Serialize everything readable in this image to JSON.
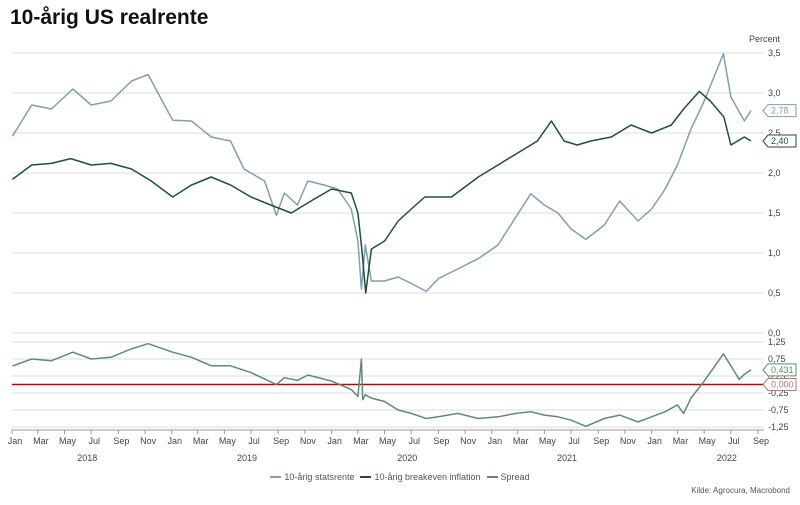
{
  "title": "10-årig US realrente",
  "source": "Kilde: Agrocura, Macrobond",
  "colors": {
    "statsrente": "#7f9fb5",
    "breakeven": "#1d5238",
    "spread": "#5d8c74",
    "zero_line": "#c00000",
    "grid": "#dcdcdc"
  },
  "chart_data": [
    {
      "type": "line",
      "unit_label": "Percent",
      "ylim": [
        0,
        3.5
      ],
      "y_ticks": [
        "0,0",
        "0,5",
        "1,0",
        "1,5",
        "2,0",
        "2,5",
        "3,0",
        "3,5"
      ],
      "grid": true,
      "series": [
        {
          "name": "10-årig statsrente",
          "x": [
            "2018-01-02",
            "2018-02-15",
            "2018-04-01",
            "2018-05-20",
            "2018-07-01",
            "2018-08-15",
            "2018-10-01",
            "2018-11-08",
            "2018-12-15",
            "2019-01-03",
            "2019-02-15",
            "2019-04-01",
            "2019-05-15",
            "2019-06-15",
            "2019-08-01",
            "2019-08-28",
            "2019-09-15",
            "2019-10-15",
            "2019-11-08",
            "2019-12-15",
            "2020-01-15",
            "2020-02-15",
            "2020-03-01",
            "2020-03-09",
            "2020-03-18",
            "2020-04-01",
            "2020-05-01",
            "2020-06-01",
            "2020-07-01",
            "2020-08-04",
            "2020-09-01",
            "2020-10-15",
            "2020-12-01",
            "2021-01-15",
            "2021-02-25",
            "2021-03-31",
            "2021-05-01",
            "2021-06-01",
            "2021-07-01",
            "2021-08-04",
            "2021-09-15",
            "2021-10-20",
            "2021-12-01",
            "2022-01-01",
            "2022-02-01",
            "2022-03-01",
            "2022-04-01",
            "2022-05-01",
            "2022-06-14",
            "2022-07-01",
            "2022-08-01",
            "2022-08-16"
          ],
          "y": [
            2.46,
            2.85,
            2.8,
            3.05,
            2.85,
            2.9,
            3.15,
            3.23,
            2.85,
            2.66,
            2.65,
            2.45,
            2.4,
            2.05,
            1.9,
            1.47,
            1.75,
            1.6,
            1.9,
            1.85,
            1.8,
            1.55,
            1.15,
            0.55,
            1.1,
            0.65,
            0.65,
            0.7,
            0.62,
            0.52,
            0.68,
            0.8,
            0.93,
            1.1,
            1.45,
            1.74,
            1.6,
            1.5,
            1.3,
            1.17,
            1.35,
            1.65,
            1.4,
            1.55,
            1.8,
            2.1,
            2.55,
            2.9,
            3.49,
            2.95,
            2.65,
            2.78
          ]
        },
        {
          "name": "10-årig breakeven inflation",
          "x": [
            "2018-01-02",
            "2018-02-15",
            "2018-04-01",
            "2018-05-15",
            "2018-07-01",
            "2018-08-15",
            "2018-10-01",
            "2018-11-15",
            "2019-01-03",
            "2019-02-15",
            "2019-04-01",
            "2019-05-15",
            "2019-07-01",
            "2019-08-15",
            "2019-10-01",
            "2019-11-15",
            "2020-01-01",
            "2020-02-15",
            "2020-03-01",
            "2020-03-10",
            "2020-03-19",
            "2020-04-01",
            "2020-05-01",
            "2020-06-01",
            "2020-07-01",
            "2020-08-01",
            "2020-10-01",
            "2020-12-01",
            "2021-01-15",
            "2021-03-01",
            "2021-04-15",
            "2021-05-17",
            "2021-06-15",
            "2021-07-15",
            "2021-08-15",
            "2021-10-01",
            "2021-11-15",
            "2022-01-01",
            "2022-02-15",
            "2022-03-15",
            "2022-04-20",
            "2022-05-15",
            "2022-06-15",
            "2022-07-01",
            "2022-08-01",
            "2022-08-16"
          ],
          "y": [
            1.92,
            2.1,
            2.12,
            2.18,
            2.1,
            2.12,
            2.05,
            1.9,
            1.7,
            1.85,
            1.95,
            1.85,
            1.7,
            1.6,
            1.5,
            1.65,
            1.8,
            1.75,
            1.5,
            1.05,
            0.5,
            1.05,
            1.15,
            1.4,
            1.55,
            1.7,
            1.7,
            1.95,
            2.1,
            2.25,
            2.4,
            2.65,
            2.4,
            2.35,
            2.4,
            2.45,
            2.6,
            2.5,
            2.6,
            2.8,
            3.02,
            2.9,
            2.7,
            2.35,
            2.45,
            2.4
          ]
        }
      ],
      "end_labels": [
        "2,78",
        "2,40"
      ]
    },
    {
      "type": "line",
      "ylim": [
        -1.25,
        1.25
      ],
      "y_ticks": [
        "1,25",
        "0,75",
        "0,25",
        "-0,25",
        "-0,75",
        "-1,25"
      ],
      "grid": true,
      "series": [
        {
          "name": "Spread",
          "x": [
            "2018-01-02",
            "2018-02-15",
            "2018-04-01",
            "2018-05-20",
            "2018-07-01",
            "2018-08-15",
            "2018-10-01",
            "2018-11-08",
            "2019-01-03",
            "2019-02-15",
            "2019-04-01",
            "2019-05-15",
            "2019-07-01",
            "2019-08-28",
            "2019-09-15",
            "2019-10-15",
            "2019-11-08",
            "2020-01-01",
            "2020-02-15",
            "2020-03-01",
            "2020-03-09",
            "2020-03-12",
            "2020-03-18",
            "2020-04-01",
            "2020-05-01",
            "2020-06-01",
            "2020-07-01",
            "2020-08-04",
            "2020-09-01",
            "2020-10-15",
            "2020-12-01",
            "2021-01-15",
            "2021-02-25",
            "2021-03-31",
            "2021-05-01",
            "2021-06-01",
            "2021-07-01",
            "2021-08-04",
            "2021-09-15",
            "2021-10-20",
            "2021-12-01",
            "2022-01-01",
            "2022-02-01",
            "2022-03-01",
            "2022-03-15",
            "2022-04-01",
            "2022-05-01",
            "2022-06-14",
            "2022-07-01",
            "2022-07-20",
            "2022-08-01",
            "2022-08-16"
          ],
          "y": [
            0.54,
            0.75,
            0.7,
            0.95,
            0.75,
            0.8,
            1.05,
            1.2,
            0.95,
            0.8,
            0.55,
            0.55,
            0.35,
            0.0,
            0.2,
            0.12,
            0.28,
            0.1,
            -0.15,
            -0.35,
            0.75,
            -0.45,
            -0.3,
            -0.4,
            -0.5,
            -0.75,
            -0.85,
            -1.0,
            -0.95,
            -0.85,
            -1.0,
            -0.95,
            -0.85,
            -0.8,
            -0.9,
            -0.95,
            -1.05,
            -1.23,
            -1.0,
            -0.9,
            -1.1,
            -0.95,
            -0.8,
            -0.6,
            -0.85,
            -0.4,
            0.1,
            0.9,
            0.55,
            0.15,
            0.3,
            0.43
          ]
        }
      ],
      "end_labels": [
        "0,431",
        "0,000"
      ]
    }
  ],
  "x_axis": {
    "months": [
      "Jan",
      "Mar",
      "May",
      "Jul",
      "Sep",
      "Nov",
      "Jan",
      "Mar",
      "May",
      "Jul",
      "Sep",
      "Nov",
      "Jan",
      "Mar",
      "May",
      "Jul",
      "Sep",
      "Nov",
      "Jan",
      "Mar",
      "May",
      "Jul",
      "Sep",
      "Nov",
      "Jan",
      "Mar",
      "May",
      "Jul",
      "Sep"
    ],
    "years": [
      "2018",
      "2019",
      "2020",
      "2021",
      "2022"
    ]
  },
  "legend": [
    {
      "label": "10-årig statsrente",
      "color": "#7f9fb5"
    },
    {
      "label": "10-årig breakeven inflation",
      "color": "#1d5238"
    },
    {
      "label": "Spread",
      "color": "#5d8c74"
    }
  ]
}
